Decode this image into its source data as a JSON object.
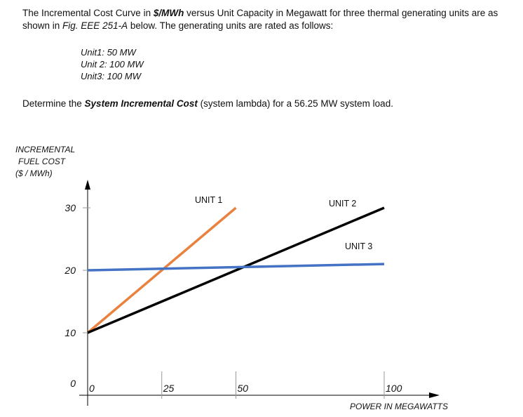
{
  "problem": {
    "line1_a": "The Incremental Cost Curve in ",
    "line1_unit": "$/MWh",
    "line1_b": " versus Unit Capacity in Megawatt for three thermal generating units are as shown in ",
    "fig_ref": "Fig. EEE 251-A",
    "line1_c": " below. The generating units are rated as follows:",
    "units": [
      "Unit1: 50 MW",
      "Unit 2: 100 MW",
      "Unit3: 100 MW"
    ],
    "task_a": "Determine the ",
    "task_bold": "System Incremental Cost",
    "task_b": " (system lambda) for a 56.25 MW system load."
  },
  "chart_data": {
    "type": "line",
    "ylabel": [
      "INCREMENTAL",
      "FUEL COST",
      "($ / MWh)"
    ],
    "xlabel": "POWER IN MEGAWATTS",
    "xlim": [
      0,
      100
    ],
    "ylim": [
      0,
      30
    ],
    "x_ticks": [
      "0",
      "25",
      "50",
      "100"
    ],
    "y_ticks": [
      "0",
      "10",
      "20",
      "30"
    ],
    "series": [
      {
        "name": "UNIT 1",
        "color": "#e8823e",
        "x": [
          0,
          50
        ],
        "y": [
          10,
          30
        ]
      },
      {
        "name": "UNIT 2",
        "color": "#000000",
        "x": [
          0,
          100
        ],
        "y": [
          10,
          30
        ]
      },
      {
        "name": "UNIT 3",
        "color": "#4472c4",
        "x": [
          0,
          100
        ],
        "y": [
          20,
          21
        ]
      }
    ]
  }
}
